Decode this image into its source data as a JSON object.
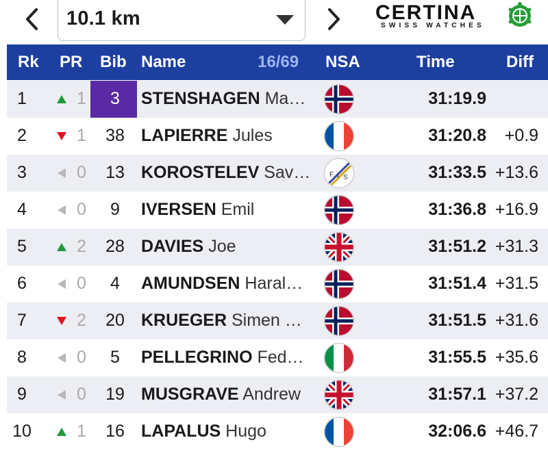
{
  "nav": {
    "selected_split": "10.1 km"
  },
  "sponsor": {
    "name": "CERTINA",
    "tagline": "SWISS WATCHES",
    "colors": {
      "logo_green": "#2a9d3a"
    }
  },
  "table": {
    "headers": {
      "rank": "Rk",
      "pr": "PR",
      "bib": "Bib",
      "name": "Name",
      "count": "16/69",
      "nsa": "NSA",
      "time": "Time",
      "diff": "Diff"
    },
    "colors": {
      "header_bg": "#1d3fa0",
      "up": "#1f9a3a",
      "down": "#e0141e",
      "same": "#b8b8b8",
      "bib_highlight": "#5a2aa5"
    },
    "rows": [
      {
        "rank": "1",
        "trend": "up",
        "pr": "1",
        "bib": "3",
        "bib_highlight": true,
        "surname": "STENSHAGEN",
        "given": "Ma…",
        "nsa": "NOR",
        "time": "31:19.9",
        "diff": ""
      },
      {
        "rank": "2",
        "trend": "down",
        "pr": "1",
        "bib": "38",
        "surname": "LAPIERRE",
        "given": "Jules",
        "nsa": "FRA",
        "time": "31:20.8",
        "diff": "+0.9"
      },
      {
        "rank": "3",
        "trend": "same",
        "pr": "0",
        "bib": "13",
        "surname": "KOROSTELEV",
        "given": "Sav…",
        "nsa": "FIS",
        "time": "31:33.5",
        "diff": "+13.6"
      },
      {
        "rank": "4",
        "trend": "same",
        "pr": "0",
        "bib": "9",
        "surname": "IVERSEN",
        "given": "Emil",
        "nsa": "NOR",
        "time": "31:36.8",
        "diff": "+16.9"
      },
      {
        "rank": "5",
        "trend": "up",
        "pr": "2",
        "bib": "28",
        "surname": "DAVIES",
        "given": "Joe",
        "nsa": "GBR",
        "time": "31:51.2",
        "diff": "+31.3"
      },
      {
        "rank": "6",
        "trend": "same",
        "pr": "0",
        "bib": "4",
        "surname": "AMUNDSEN",
        "given": "Haral…",
        "nsa": "NOR",
        "time": "31:51.4",
        "diff": "+31.5"
      },
      {
        "rank": "7",
        "trend": "down",
        "pr": "2",
        "bib": "20",
        "surname": "KRUEGER",
        "given": "Simen …",
        "nsa": "NOR",
        "time": "31:51.5",
        "diff": "+31.6"
      },
      {
        "rank": "8",
        "trend": "same",
        "pr": "0",
        "bib": "5",
        "surname": "PELLEGRINO",
        "given": "Fed…",
        "nsa": "ITA",
        "time": "31:55.5",
        "diff": "+35.6"
      },
      {
        "rank": "9",
        "trend": "same",
        "pr": "0",
        "bib": "19",
        "surname": "MUSGRAVE",
        "given": "Andrew",
        "nsa": "GBR",
        "time": "31:57.1",
        "diff": "+37.2"
      },
      {
        "rank": "10",
        "trend": "up",
        "pr": "1",
        "bib": "16",
        "surname": "LAPALUS",
        "given": "Hugo",
        "nsa": "FRA",
        "time": "32:06.6",
        "diff": "+46.7"
      }
    ]
  }
}
